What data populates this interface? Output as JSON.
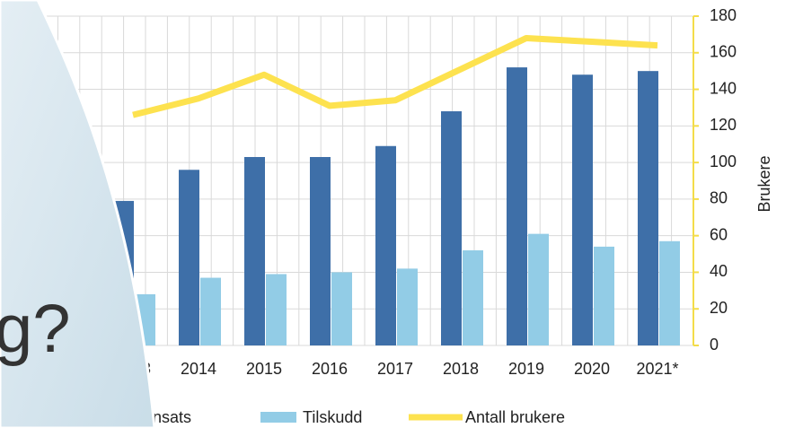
{
  "chart_data": {
    "type": "bar",
    "categories": [
      "2013",
      "2014",
      "2015",
      "2016",
      "2017",
      "2018",
      "2019",
      "2020",
      "2021*"
    ],
    "series": [
      {
        "name": "nnsats",
        "color": "#3e6fa8",
        "values": [
          79,
          96,
          103,
          103,
          109,
          128,
          152,
          148,
          150
        ]
      },
      {
        "name": "Tilskudd",
        "color": "#92cce6",
        "values": [
          28,
          37,
          39,
          40,
          42,
          52,
          61,
          54,
          57
        ]
      },
      {
        "name": "Antall brukere",
        "type": "line",
        "color": "#fde24f",
        "axis": "y2",
        "values": [
          126,
          135,
          148,
          131,
          134,
          151,
          168,
          166,
          164
        ]
      }
    ],
    "y2label": "Brukere",
    "y2lim": [
      0,
      180
    ],
    "y2ticks": [
      0,
      20,
      40,
      60,
      80,
      100,
      120,
      140,
      160,
      180
    ],
    "grid": true,
    "legend": "bottom"
  },
  "overlay": {
    "text": "g?"
  }
}
